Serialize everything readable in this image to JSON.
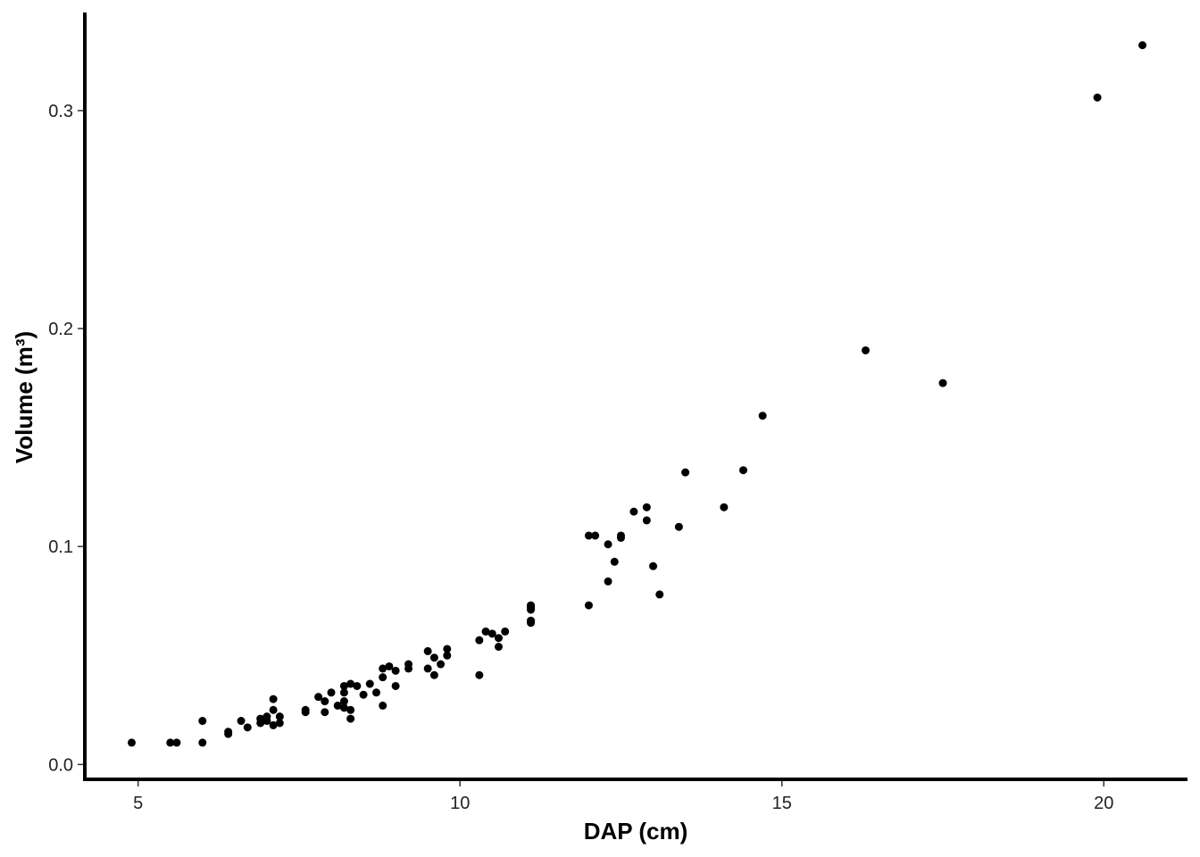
{
  "chart_data": {
    "type": "scatter",
    "title": "",
    "xlabel": "DAP (cm)",
    "ylabel": "Volume (m³)",
    "xlim": [
      4.2,
      21.3
    ],
    "ylim": [
      -0.006,
      0.345
    ],
    "xticks": [
      5,
      10,
      15,
      20
    ],
    "yticks": [
      0.0,
      0.1,
      0.2,
      0.3
    ],
    "ytick_labels": [
      "0.0",
      "0.1",
      "0.2",
      "0.3"
    ],
    "grid": false,
    "marker_color": "#000000",
    "points": [
      [
        4.9,
        0.01
      ],
      [
        5.5,
        0.01
      ],
      [
        5.6,
        0.01
      ],
      [
        6.0,
        0.01
      ],
      [
        6.0,
        0.02
      ],
      [
        6.4,
        0.014
      ],
      [
        6.4,
        0.015
      ],
      [
        6.6,
        0.02
      ],
      [
        6.7,
        0.017
      ],
      [
        6.9,
        0.019
      ],
      [
        6.9,
        0.021
      ],
      [
        7.0,
        0.02
      ],
      [
        7.0,
        0.022
      ],
      [
        7.1,
        0.018
      ],
      [
        7.1,
        0.025
      ],
      [
        7.1,
        0.03
      ],
      [
        7.2,
        0.019
      ],
      [
        7.2,
        0.022
      ],
      [
        7.6,
        0.024
      ],
      [
        7.6,
        0.025
      ],
      [
        7.8,
        0.031
      ],
      [
        7.9,
        0.024
      ],
      [
        7.9,
        0.029
      ],
      [
        8.0,
        0.033
      ],
      [
        8.1,
        0.027
      ],
      [
        8.2,
        0.026
      ],
      [
        8.2,
        0.029
      ],
      [
        8.2,
        0.033
      ],
      [
        8.2,
        0.036
      ],
      [
        8.3,
        0.021
      ],
      [
        8.3,
        0.025
      ],
      [
        8.3,
        0.037
      ],
      [
        8.4,
        0.036
      ],
      [
        8.5,
        0.032
      ],
      [
        8.6,
        0.037
      ],
      [
        8.7,
        0.033
      ],
      [
        8.8,
        0.027
      ],
      [
        8.8,
        0.04
      ],
      [
        8.8,
        0.044
      ],
      [
        8.9,
        0.045
      ],
      [
        9.0,
        0.036
      ],
      [
        9.0,
        0.043
      ],
      [
        9.2,
        0.044
      ],
      [
        9.2,
        0.046
      ],
      [
        9.5,
        0.044
      ],
      [
        9.5,
        0.052
      ],
      [
        9.6,
        0.041
      ],
      [
        9.6,
        0.049
      ],
      [
        9.7,
        0.046
      ],
      [
        9.8,
        0.05
      ],
      [
        9.8,
        0.053
      ],
      [
        10.3,
        0.041
      ],
      [
        10.3,
        0.057
      ],
      [
        10.4,
        0.061
      ],
      [
        10.5,
        0.06
      ],
      [
        10.6,
        0.054
      ],
      [
        10.6,
        0.058
      ],
      [
        10.7,
        0.061
      ],
      [
        11.1,
        0.065
      ],
      [
        11.1,
        0.066
      ],
      [
        11.1,
        0.071
      ],
      [
        11.1,
        0.072
      ],
      [
        11.1,
        0.073
      ],
      [
        12.0,
        0.073
      ],
      [
        12.0,
        0.105
      ],
      [
        12.1,
        0.105
      ],
      [
        12.3,
        0.084
      ],
      [
        12.3,
        0.101
      ],
      [
        12.4,
        0.093
      ],
      [
        12.5,
        0.104
      ],
      [
        12.5,
        0.105
      ],
      [
        12.7,
        0.116
      ],
      [
        12.9,
        0.112
      ],
      [
        12.9,
        0.118
      ],
      [
        13.0,
        0.091
      ],
      [
        13.1,
        0.078
      ],
      [
        13.4,
        0.109
      ],
      [
        13.5,
        0.134
      ],
      [
        14.1,
        0.118
      ],
      [
        14.4,
        0.135
      ],
      [
        14.7,
        0.16
      ],
      [
        16.3,
        0.19
      ],
      [
        17.5,
        0.175
      ],
      [
        19.9,
        0.306
      ],
      [
        20.6,
        0.33
      ]
    ]
  }
}
